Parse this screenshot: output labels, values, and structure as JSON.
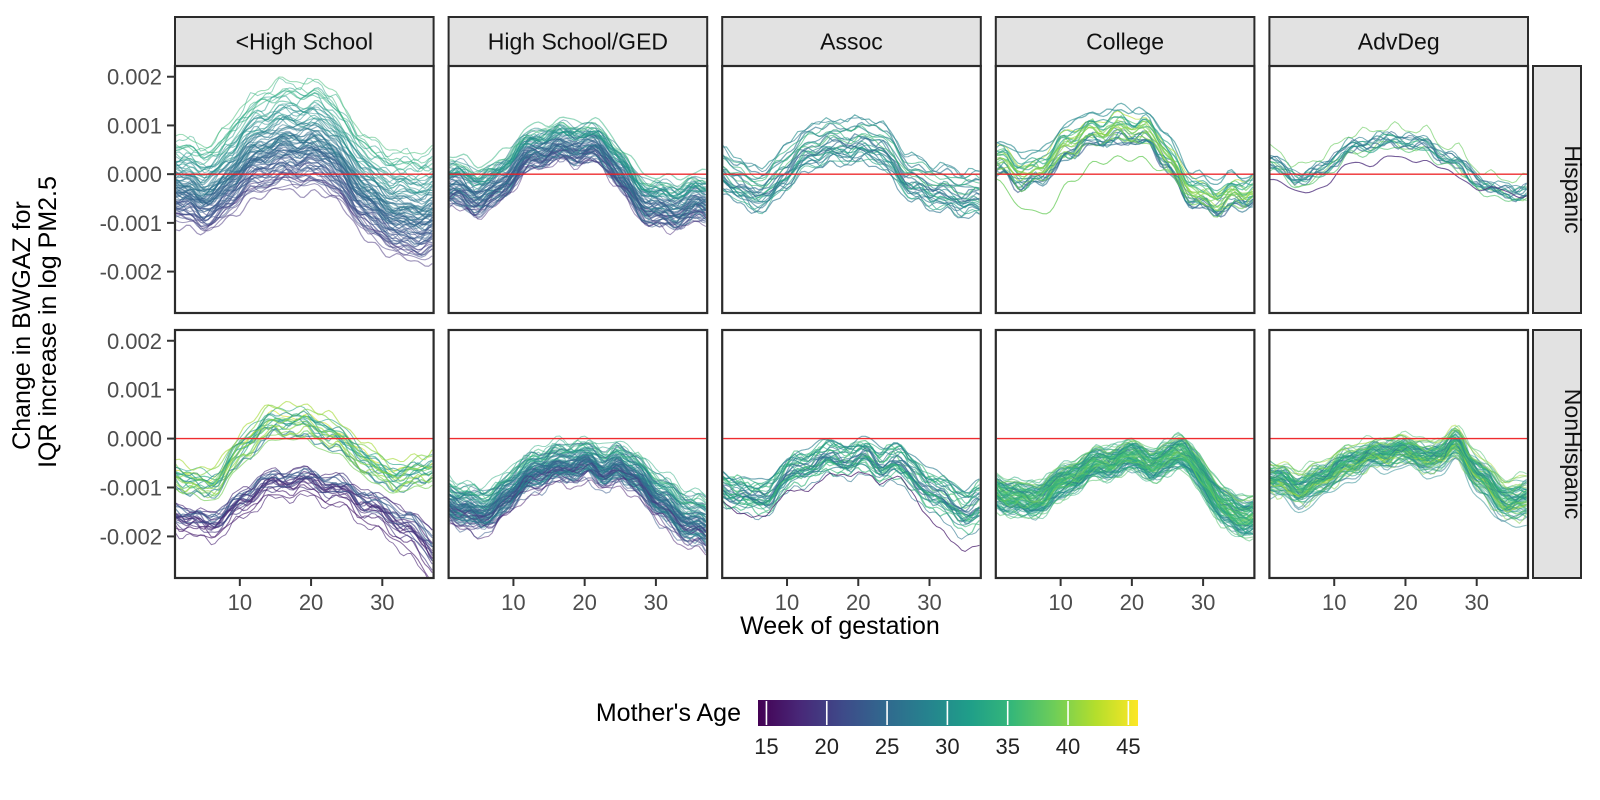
{
  "chart_data": {
    "type": "line",
    "subtype": "faceted-spaghetti",
    "xlabel": "Week of gestation",
    "ylabel_lines": [
      "Change in BWGAZ for",
      "IQR increase in log PM2.5"
    ],
    "x_domain": [
      1,
      37
    ],
    "xticks": [
      10,
      20,
      30
    ],
    "yticks": [
      "0.002",
      "0.001",
      "0.000",
      "-0.001",
      "-0.002"
    ],
    "ytick_values": [
      0.002,
      0.001,
      0.0,
      -0.001,
      -0.002
    ],
    "ylim": [
      -0.00285,
      0.00222
    ],
    "grid": "off",
    "legend_position": "bottom",
    "col_facets": [
      "<High School",
      "High School/GED",
      "Assoc",
      "College",
      "AdvDeg"
    ],
    "row_facets": [
      "Hispanic",
      "NonHispanic"
    ],
    "reference_line": {
      "y": 0.0,
      "color": "#ed2024"
    },
    "legend": {
      "title": "Mother's Age",
      "ticks": [
        15,
        20,
        25,
        30,
        35,
        40,
        45
      ],
      "age_domain": [
        14.3,
        45.8
      ],
      "colormap": "viridis"
    },
    "style": {
      "strip_fill": "#e2e2e2",
      "border_color": "#2b2b2b",
      "tick_color": "#333333",
      "axis_text_color": "#4d4d4d",
      "viridis_stops": [
        "#440154",
        "#482878",
        "#3e4a89",
        "#31688e",
        "#26828e",
        "#1f9e89",
        "#35b779",
        "#6dcd59",
        "#b4de2c",
        "#fde725"
      ]
    },
    "unit": 0.001,
    "anchor_weeks": [
      1,
      3,
      5,
      7,
      9,
      11,
      13,
      15,
      17,
      19,
      21,
      23,
      25,
      27,
      29,
      31,
      33,
      35,
      37
    ],
    "panels": [
      {
        "row": "Hispanic",
        "col": "<High School",
        "r": 0,
        "c": 0,
        "seed": 101,
        "clusters": [
          {
            "n": 88,
            "ages": [
              15,
              38
            ],
            "corr": 0.85,
            "mean": [
              -0.15,
              -0.25,
              -0.35,
              -0.22,
              0.1,
              0.4,
              0.58,
              0.68,
              0.72,
              0.72,
              0.7,
              0.55,
              0.15,
              -0.18,
              -0.45,
              -0.62,
              -0.73,
              -0.75,
              -0.7
            ],
            "spread": [
              1.05,
              1.05,
              1.08,
              1.1,
              1.15,
              1.22,
              1.28,
              1.32,
              1.33,
              1.33,
              1.32,
              1.3,
              1.25,
              1.22,
              1.22,
              1.27,
              1.32,
              1.33,
              1.33
            ]
          }
        ]
      },
      {
        "row": "Hispanic",
        "col": "High School/GED",
        "r": 0,
        "c": 1,
        "seed": 102,
        "clusters": [
          {
            "n": 72,
            "ages": [
              15,
              38
            ],
            "corr": 0.55,
            "mean": [
              -0.2,
              -0.28,
              -0.38,
              -0.3,
              -0.02,
              0.3,
              0.5,
              0.58,
              0.6,
              0.62,
              0.6,
              0.45,
              0.05,
              -0.35,
              -0.58,
              -0.68,
              -0.65,
              -0.58,
              -0.55
            ],
            "spread": [
              0.6,
              0.6,
              0.6,
              0.58,
              0.55,
              0.52,
              0.5,
              0.5,
              0.5,
              0.5,
              0.5,
              0.5,
              0.52,
              0.55,
              0.58,
              0.6,
              0.6,
              0.58,
              0.58
            ]
          }
        ]
      },
      {
        "row": "Hispanic",
        "col": "Assoc",
        "r": 0,
        "c": 2,
        "seed": 103,
        "clusters": [
          {
            "n": 27,
            "ages": [
              20,
              40
            ],
            "corr": 0.35,
            "mean": [
              0.05,
              -0.1,
              -0.32,
              -0.28,
              0.0,
              0.3,
              0.52,
              0.62,
              0.65,
              0.67,
              0.68,
              0.6,
              0.3,
              -0.05,
              -0.18,
              -0.28,
              -0.35,
              -0.4,
              -0.45
            ],
            "spread": 0.55
          }
        ]
      },
      {
        "row": "Hispanic",
        "col": "College",
        "r": 0,
        "c": 3,
        "seed": 104,
        "clusters": [
          {
            "n": 27,
            "ages": [
              22,
              44
            ],
            "corr": 0.2,
            "mean": [
              0.3,
              0.15,
              -0.02,
              0.08,
              0.35,
              0.6,
              0.78,
              0.88,
              0.9,
              0.92,
              0.9,
              0.78,
              0.35,
              -0.1,
              -0.4,
              -0.52,
              -0.48,
              -0.4,
              -0.38
            ],
            "spread": 0.5
          },
          {
            "n": 1,
            "ages": [
              38,
              39
            ],
            "corr": 0,
            "mean": [
              -0.15,
              -0.45,
              -0.7,
              -0.85,
              -0.6,
              -0.25,
              0.05,
              0.2,
              0.3,
              0.32,
              0.3,
              0.2,
              0.0,
              -0.25,
              -0.5,
              -0.6,
              -0.55,
              -0.45,
              -0.4
            ],
            "spread": 0.02
          }
        ]
      },
      {
        "row": "Hispanic",
        "col": "AdvDeg",
        "r": 0,
        "c": 4,
        "seed": 105,
        "clusters": [
          {
            "n": 14,
            "ages": [
              24,
              40
            ],
            "corr": 0.0,
            "mean": [
              0.25,
              0.12,
              -0.08,
              -0.02,
              0.2,
              0.42,
              0.58,
              0.65,
              0.68,
              0.7,
              0.68,
              0.6,
              0.38,
              0.3,
              0.0,
              -0.2,
              -0.33,
              -0.37,
              -0.3
            ],
            "spread": 0.3
          },
          {
            "n": 1,
            "ages": [
              17,
              18
            ],
            "corr": 0,
            "mean": [
              -0.1,
              -0.2,
              -0.42,
              -0.38,
              -0.15,
              0.05,
              0.18,
              0.25,
              0.28,
              0.3,
              0.3,
              0.25,
              0.1,
              -0.05,
              -0.2,
              -0.3,
              -0.38,
              -0.4,
              -0.38
            ],
            "spread": 0.02
          }
        ]
      },
      {
        "row": "NonHispanic",
        "col": "<High School",
        "r": 1,
        "c": 0,
        "seed": 201,
        "clusters": [
          {
            "n": 21,
            "ages": [
              26,
              46
            ],
            "corr": 0.15,
            "mean": [
              -0.75,
              -0.85,
              -0.95,
              -0.8,
              -0.45,
              -0.1,
              0.2,
              0.33,
              0.35,
              0.3,
              0.22,
              0.1,
              -0.15,
              -0.35,
              -0.6,
              -0.72,
              -0.78,
              -0.7,
              -0.55
            ],
            "spread": [
              0.45,
              0.45,
              0.48,
              0.5,
              0.52,
              0.55,
              0.55,
              0.55,
              0.55,
              0.55,
              0.55,
              0.55,
              0.55,
              0.52,
              0.5,
              0.5,
              0.5,
              0.5,
              0.5
            ]
          },
          {
            "n": 22,
            "ages": [
              15,
              25
            ],
            "corr": 0.3,
            "mean": [
              -1.6,
              -1.68,
              -1.8,
              -1.72,
              -1.5,
              -1.25,
              -1.05,
              -0.95,
              -0.9,
              -0.92,
              -0.97,
              -1.05,
              -1.15,
              -1.35,
              -1.5,
              -1.65,
              -1.85,
              -2.1,
              -2.4
            ],
            "spread": [
              0.35,
              0.35,
              0.35,
              0.35,
              0.35,
              0.35,
              0.35,
              0.35,
              0.35,
              0.35,
              0.35,
              0.38,
              0.4,
              0.42,
              0.45,
              0.5,
              0.55,
              0.62,
              0.7
            ]
          }
        ]
      },
      {
        "row": "NonHispanic",
        "col": "High School/GED",
        "r": 1,
        "c": 1,
        "seed": 202,
        "clusters": [
          {
            "n": 85,
            "ages": [
              15,
              38
            ],
            "corr": 0.45,
            "mean": [
              -1.35,
              -1.42,
              -1.52,
              -1.45,
              -1.18,
              -0.9,
              -0.7,
              -0.6,
              -0.55,
              -0.52,
              -0.5,
              -0.68,
              -0.55,
              -0.75,
              -1.05,
              -1.3,
              -1.55,
              -1.72,
              -1.82
            ],
            "spread": [
              0.55,
              0.55,
              0.55,
              0.55,
              0.52,
              0.5,
              0.5,
              0.5,
              0.5,
              0.5,
              0.5,
              0.5,
              0.5,
              0.52,
              0.55,
              0.6,
              0.65,
              0.68,
              0.7
            ]
          }
        ]
      },
      {
        "row": "NonHispanic",
        "col": "Assoc",
        "r": 1,
        "c": 2,
        "seed": 203,
        "clusters": [
          {
            "n": 32,
            "ages": [
              22,
              38
            ],
            "corr": 0.2,
            "mean": [
              -1.0,
              -1.1,
              -1.25,
              -1.18,
              -0.92,
              -0.68,
              -0.52,
              -0.45,
              -0.42,
              -0.4,
              -0.38,
              -0.55,
              -0.45,
              -0.7,
              -0.9,
              -1.15,
              -1.35,
              -1.45,
              -1.4
            ],
            "spread": [
              0.42,
              0.42,
              0.42,
              0.42,
              0.42,
              0.42,
              0.42,
              0.42,
              0.42,
              0.42,
              0.42,
              0.44,
              0.46,
              0.48,
              0.5,
              0.52,
              0.55,
              0.58,
              0.6
            ]
          },
          {
            "n": 1,
            "ages": [
              16,
              17
            ],
            "corr": 0,
            "mean": [
              -1.3,
              -1.45,
              -1.6,
              -1.55,
              -1.3,
              -1.1,
              -0.95,
              -0.85,
              -0.8,
              -0.75,
              -0.72,
              -0.85,
              -0.8,
              -1.1,
              -1.4,
              -1.75,
              -2.1,
              -2.3,
              -2.25
            ],
            "spread": 0.02
          }
        ]
      },
      {
        "row": "NonHispanic",
        "col": "College",
        "r": 1,
        "c": 3,
        "seed": 204,
        "clusters": [
          {
            "n": 85,
            "ages": [
              24,
              40
            ],
            "corr": 0.1,
            "mean": [
              -1.1,
              -1.2,
              -1.3,
              -1.22,
              -1.05,
              -0.85,
              -0.68,
              -0.55,
              -0.48,
              -0.42,
              -0.4,
              -0.55,
              -0.45,
              -0.25,
              -0.65,
              -1.05,
              -1.4,
              -1.65,
              -1.55
            ],
            "spread": [
              0.45,
              0.45,
              0.45,
              0.45,
              0.43,
              0.42,
              0.4,
              0.4,
              0.4,
              0.4,
              0.4,
              0.42,
              0.42,
              0.42,
              0.45,
              0.48,
              0.5,
              0.52,
              0.52
            ]
          }
        ]
      },
      {
        "row": "NonHispanic",
        "col": "AdvDeg",
        "r": 1,
        "c": 4,
        "seed": 205,
        "clusters": [
          {
            "n": 70,
            "ages": [
              25,
              42
            ],
            "corr": 0.05,
            "mean": [
              -0.8,
              -0.9,
              -1.02,
              -0.95,
              -0.75,
              -0.58,
              -0.45,
              -0.36,
              -0.3,
              -0.27,
              -0.25,
              -0.45,
              -0.3,
              -0.12,
              -0.5,
              -0.85,
              -1.15,
              -1.32,
              -1.2
            ],
            "spread": [
              0.4,
              0.4,
              0.42,
              0.42,
              0.4,
              0.38,
              0.36,
              0.35,
              0.35,
              0.35,
              0.35,
              0.38,
              0.38,
              0.38,
              0.42,
              0.46,
              0.5,
              0.52,
              0.52
            ]
          }
        ]
      }
    ]
  }
}
